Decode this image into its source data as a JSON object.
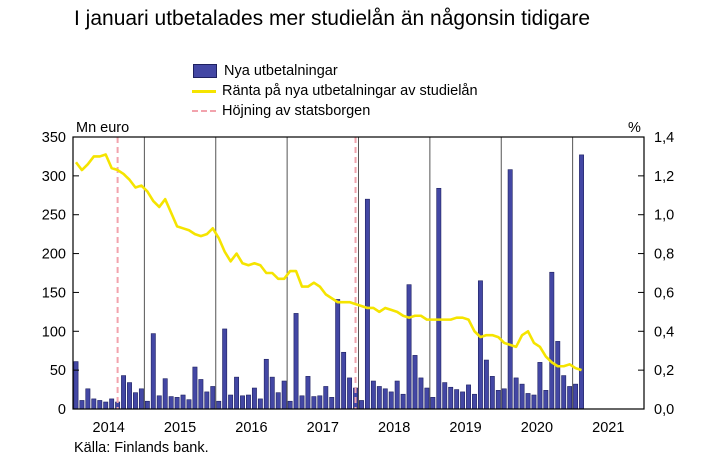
{
  "title": "I januari utbetalades mer studielån än någonsin tidigare",
  "left_unit": "Mn euro",
  "right_unit": "%",
  "source": "Källa: Finlands bank.",
  "legend": {
    "bars": "Nya utbetalningar",
    "line": "Ränta på nya utbetalningar av studielån",
    "dashed": "Höjning av statsborgen"
  },
  "colors": {
    "bar_fill": "#4347a4",
    "bar_stroke": "#1e2060",
    "line": "#f5e400",
    "dashed": "#f2a3ad"
  },
  "chart_data": {
    "type": "bar+line",
    "x_labels": [
      "2014",
      "2015",
      "2016",
      "2017",
      "2018",
      "2019",
      "2020",
      "2021"
    ],
    "y_left": {
      "label": "Mn euro",
      "lim": [
        0,
        350
      ],
      "ticks": [
        "0",
        "50",
        "100",
        "150",
        "200",
        "250",
        "300",
        "350"
      ]
    },
    "y_right": {
      "label": "%",
      "lim": [
        0,
        1.4
      ],
      "ticks": [
        "0,0",
        "0,2",
        "0,4",
        "0,6",
        "0,8",
        "1,0",
        "1,2",
        "1,4"
      ]
    },
    "series": [
      {
        "name": "Nya utbetalningar",
        "type": "bar",
        "axis": "left",
        "start": "2014-01",
        "values": [
          61,
          11,
          26,
          13,
          11,
          9,
          13,
          9,
          43,
          34,
          21,
          26,
          10,
          97,
          17,
          39,
          16,
          15,
          18,
          12,
          54,
          38,
          22,
          29,
          10,
          103,
          18,
          41,
          17,
          18,
          27,
          13,
          64,
          41,
          21,
          36,
          10,
          123,
          17,
          42,
          16,
          17,
          29,
          15,
          141,
          73,
          40,
          27,
          11,
          270,
          36,
          29,
          26,
          22,
          36,
          19,
          160,
          69,
          40,
          27,
          15,
          284,
          34,
          28,
          25,
          22,
          31,
          19,
          165,
          63,
          42,
          24,
          26,
          308,
          40,
          32,
          20,
          18,
          60,
          24,
          176,
          87,
          43,
          29,
          32,
          327
        ]
      },
      {
        "name": "Ränta på nya utbetalningar av studielån",
        "type": "line",
        "axis": "right",
        "start": "2014-01",
        "values": [
          1.27,
          1.23,
          1.26,
          1.3,
          1.3,
          1.31,
          1.24,
          1.23,
          1.21,
          1.18,
          1.14,
          1.15,
          1.12,
          1.07,
          1.04,
          1.08,
          1.01,
          0.94,
          0.93,
          0.92,
          0.9,
          0.89,
          0.9,
          0.93,
          0.88,
          0.81,
          0.76,
          0.8,
          0.75,
          0.74,
          0.75,
          0.74,
          0.7,
          0.7,
          0.67,
          0.67,
          0.71,
          0.71,
          0.63,
          0.63,
          0.65,
          0.63,
          0.59,
          0.57,
          0.55,
          0.55,
          0.55,
          0.54,
          0.53,
          0.52,
          0.52,
          0.5,
          0.52,
          0.51,
          0.5,
          0.48,
          0.47,
          0.48,
          0.48,
          0.46,
          0.46,
          0.46,
          0.46,
          0.46,
          0.47,
          0.47,
          0.46,
          0.4,
          0.37,
          0.38,
          0.38,
          0.37,
          0.34,
          0.33,
          0.32,
          0.38,
          0.4,
          0.34,
          0.32,
          0.27,
          0.24,
          0.22,
          0.22,
          0.23,
          0.21,
          0.2
        ]
      },
      {
        "name": "Höjning av statsborgen",
        "type": "vline",
        "dates": [
          "2014-08",
          "2017-12"
        ]
      }
    ],
    "grid": false,
    "legend_position": "top"
  }
}
